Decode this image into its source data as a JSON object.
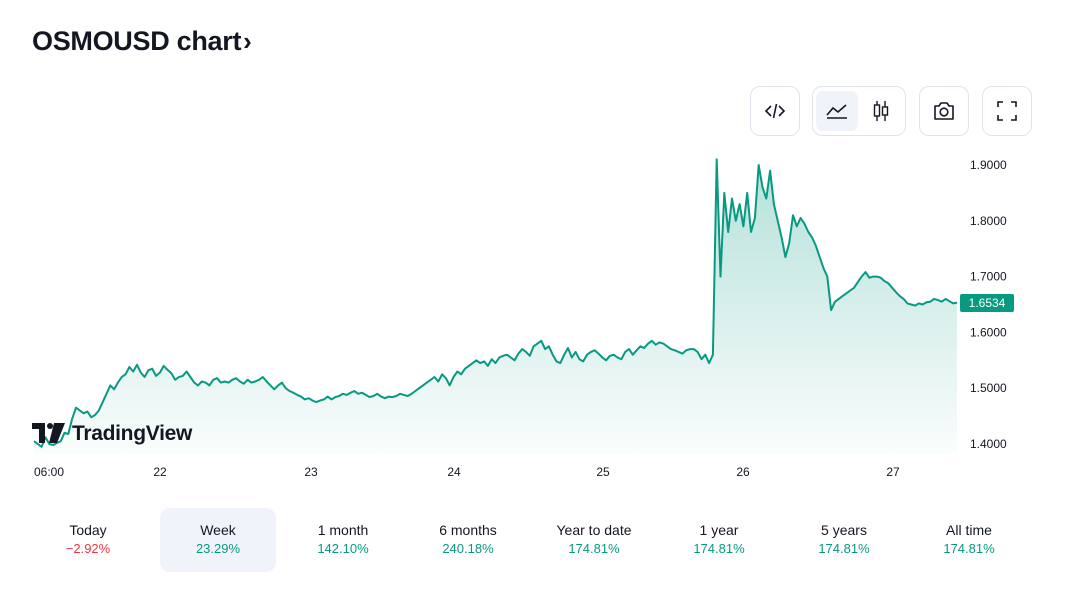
{
  "page": {
    "title": "OSMOUSD chart",
    "title_chevron": "›"
  },
  "toolbar": {
    "buttons": [
      {
        "name": "embed-icon"
      },
      {
        "name": "area-chart-icon",
        "active": true
      },
      {
        "name": "candlestick-icon"
      },
      {
        "name": "camera-icon"
      },
      {
        "name": "fullscreen-icon"
      }
    ]
  },
  "logo": {
    "text": "TradingView"
  },
  "chart_data": {
    "type": "area",
    "symbol": "OSMOUSD",
    "x_tick_labels": [
      "06:00",
      "22",
      "23",
      "24",
      "25",
      "26",
      "27"
    ],
    "y_tick_labels": [
      "1.9000",
      "1.8000",
      "1.7000",
      "1.6000",
      "1.5000",
      "1.4000"
    ],
    "ylim": [
      1.38,
      1.92
    ],
    "last_price": "1.6534",
    "line_color": "#089981",
    "fill_color": "#089981",
    "series": [
      {
        "name": "OSMOUSD",
        "values": [
          1.405,
          1.4,
          1.395,
          1.412,
          1.4,
          1.398,
          1.402,
          1.405,
          1.42,
          1.418,
          1.445,
          1.465,
          1.46,
          1.455,
          1.458,
          1.448,
          1.452,
          1.46,
          1.475,
          1.49,
          1.505,
          1.498,
          1.51,
          1.52,
          1.525,
          1.538,
          1.53,
          1.542,
          1.528,
          1.52,
          1.532,
          1.535,
          1.522,
          1.528,
          1.54,
          1.533,
          1.527,
          1.515,
          1.52,
          1.522,
          1.53,
          1.52,
          1.51,
          1.505,
          1.512,
          1.51,
          1.505,
          1.515,
          1.518,
          1.51,
          1.512,
          1.51,
          1.515,
          1.518,
          1.512,
          1.508,
          1.515,
          1.51,
          1.512,
          1.515,
          1.52,
          1.512,
          1.505,
          1.498,
          1.505,
          1.51,
          1.5,
          1.495,
          1.492,
          1.488,
          1.485,
          1.48,
          1.482,
          1.478,
          1.475,
          1.478,
          1.48,
          1.485,
          1.48,
          1.484,
          1.486,
          1.49,
          1.488,
          1.492,
          1.495,
          1.49,
          1.492,
          1.488,
          1.484,
          1.486,
          1.49,
          1.485,
          1.482,
          1.485,
          1.484,
          1.486,
          1.49,
          1.488,
          1.486,
          1.49,
          1.495,
          1.5,
          1.505,
          1.51,
          1.515,
          1.52,
          1.512,
          1.525,
          1.518,
          1.505,
          1.52,
          1.53,
          1.525,
          1.535,
          1.54,
          1.545,
          1.55,
          1.545,
          1.548,
          1.54,
          1.552,
          1.545,
          1.555,
          1.558,
          1.56,
          1.555,
          1.55,
          1.562,
          1.57,
          1.565,
          1.558,
          1.575,
          1.58,
          1.585,
          1.57,
          1.575,
          1.56,
          1.548,
          1.545,
          1.56,
          1.572,
          1.555,
          1.565,
          1.552,
          1.548,
          1.56,
          1.565,
          1.568,
          1.562,
          1.555,
          1.55,
          1.558,
          1.56,
          1.555,
          1.552,
          1.565,
          1.57,
          1.56,
          1.568,
          1.575,
          1.572,
          1.58,
          1.585,
          1.578,
          1.582,
          1.58,
          1.575,
          1.57,
          1.568,
          1.565,
          1.562,
          1.568,
          1.57,
          1.57,
          1.565,
          1.552,
          1.56,
          1.545,
          1.56,
          1.91,
          1.7,
          1.85,
          1.78,
          1.84,
          1.8,
          1.83,
          1.79,
          1.85,
          1.78,
          1.805,
          1.9,
          1.86,
          1.84,
          1.89,
          1.83,
          1.8,
          1.77,
          1.735,
          1.76,
          1.81,
          1.79,
          1.805,
          1.795,
          1.78,
          1.77,
          1.755,
          1.735,
          1.715,
          1.7,
          1.64,
          1.655,
          1.66,
          1.665,
          1.67,
          1.675,
          1.68,
          1.69,
          1.7,
          1.708,
          1.698,
          1.7,
          1.7,
          1.698,
          1.692,
          1.688,
          1.68,
          1.672,
          1.665,
          1.66,
          1.652,
          1.65,
          1.648,
          1.652,
          1.65,
          1.654,
          1.655,
          1.66,
          1.658,
          1.655,
          1.66,
          1.656,
          1.652,
          1.6534
        ]
      }
    ]
  },
  "periods": [
    {
      "label": "Today",
      "value": "−2.92%",
      "sign": "neg"
    },
    {
      "label": "Week",
      "value": "23.29%",
      "sign": "pos",
      "active": true
    },
    {
      "label": "1 month",
      "value": "142.10%",
      "sign": "pos"
    },
    {
      "label": "6 months",
      "value": "240.18%",
      "sign": "pos"
    },
    {
      "label": "Year to date",
      "value": "174.81%",
      "sign": "pos"
    },
    {
      "label": "1 year",
      "value": "174.81%",
      "sign": "pos"
    },
    {
      "label": "5 years",
      "value": "174.81%",
      "sign": "pos"
    },
    {
      "label": "All time",
      "value": "174.81%",
      "sign": "pos"
    }
  ]
}
